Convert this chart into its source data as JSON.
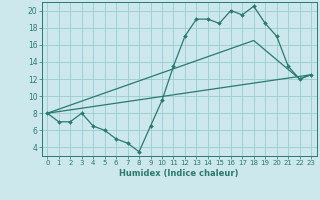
{
  "xlabel": "Humidex (Indice chaleur)",
  "bg_color": "#cce8ec",
  "grid_color": "#99ccd4",
  "line_color": "#2a7a6e",
  "xlim": [
    -0.5,
    23.5
  ],
  "ylim": [
    3,
    21
  ],
  "xticks": [
    0,
    1,
    2,
    3,
    4,
    5,
    6,
    7,
    8,
    9,
    10,
    11,
    12,
    13,
    14,
    15,
    16,
    17,
    18,
    19,
    20,
    21,
    22,
    23
  ],
  "yticks": [
    4,
    6,
    8,
    10,
    12,
    14,
    16,
    18,
    20
  ],
  "series_main": {
    "x": [
      0,
      1,
      2,
      3,
      4,
      5,
      6,
      7,
      8,
      9,
      10,
      11,
      12,
      13,
      14,
      15,
      16,
      17,
      18,
      19,
      20,
      21,
      22,
      23
    ],
    "y": [
      8,
      7,
      7,
      8,
      6.5,
      6,
      5,
      4.5,
      3.5,
      6.5,
      9.5,
      13.5,
      17,
      19,
      19,
      18.5,
      20,
      19.5,
      20.5,
      18.5,
      17,
      13.5,
      12,
      12.5
    ]
  },
  "series_line1": {
    "x": [
      0,
      23
    ],
    "y": [
      8,
      12.5
    ]
  },
  "series_line2": {
    "x": [
      0,
      18,
      22,
      23
    ],
    "y": [
      8,
      16.5,
      12,
      12.5
    ]
  }
}
